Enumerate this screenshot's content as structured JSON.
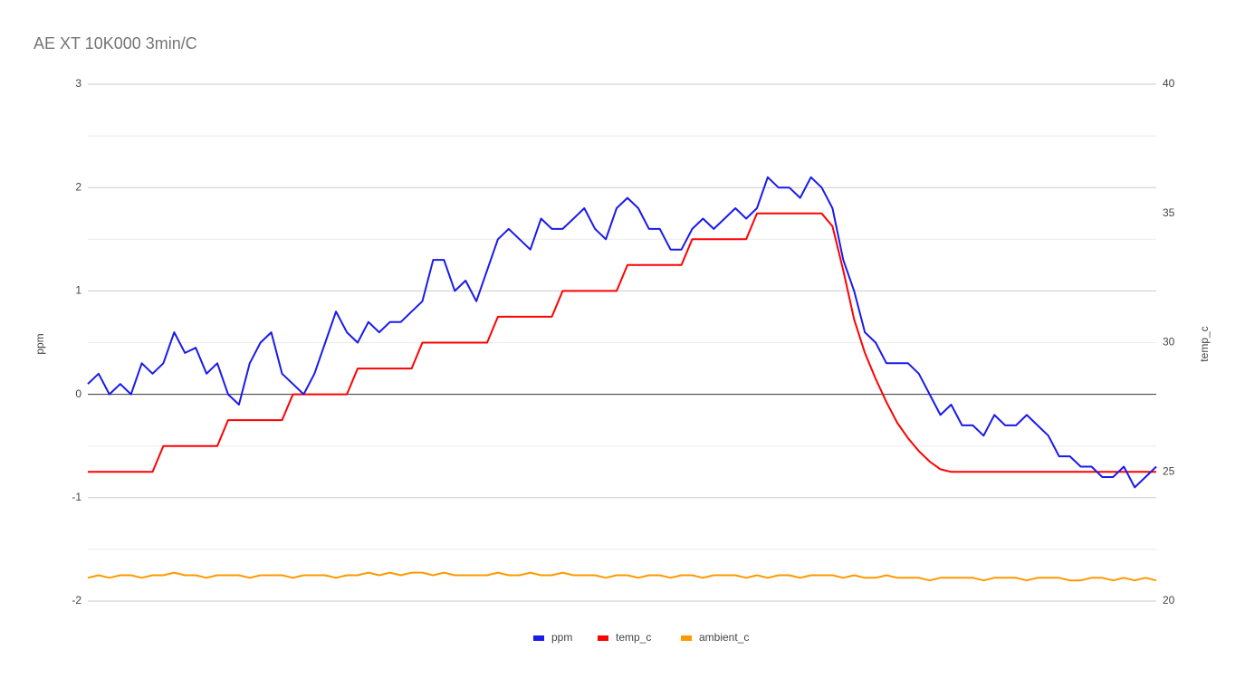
{
  "chart_data": {
    "type": "line",
    "title": "AE XT 10K000 3min/C",
    "ylabel": "ppm",
    "y2label": "temp_c",
    "categories": [
      null,
      null,
      null,
      null,
      null,
      null,
      null,
      null,
      null,
      null,
      null,
      null,
      null,
      null,
      null,
      null,
      null,
      null,
      null,
      null,
      null,
      null,
      null,
      null,
      null,
      null,
      null,
      null,
      null,
      null,
      null,
      null,
      null,
      null,
      null,
      null,
      null,
      null,
      null,
      null,
      null,
      null,
      null,
      null,
      null,
      null,
      null,
      null,
      null,
      null,
      null,
      null,
      null,
      null,
      null,
      null,
      null,
      null,
      null,
      null,
      null,
      null,
      null,
      null,
      null,
      null,
      null,
      null,
      null,
      null,
      null,
      null,
      null,
      null,
      null,
      null,
      null,
      null,
      null,
      null,
      null,
      null,
      null,
      null,
      null,
      null,
      null,
      null,
      null,
      null,
      null,
      null,
      null,
      null,
      null,
      null,
      null,
      null,
      null,
      null
    ],
    "ylim": [
      -2,
      3
    ],
    "yticks": [
      -2,
      -1,
      0,
      1,
      2,
      3
    ],
    "y2lim": [
      20,
      40
    ],
    "y2ticks": [
      20,
      25,
      30,
      35,
      40
    ],
    "grid": true,
    "legend": "bottom",
    "series": [
      {
        "name": "ppm",
        "color": "#1a1aeb",
        "values": [
          0.1,
          0.2,
          0.0,
          0.1,
          0.0,
          0.3,
          0.2,
          0.3,
          0.6,
          0.4,
          0.45,
          0.2,
          0.3,
          0.0,
          -0.1,
          0.3,
          0.5,
          0.6,
          0.2,
          0.1,
          0.0,
          0.2,
          0.5,
          0.8,
          0.6,
          0.5,
          0.7,
          0.6,
          0.7,
          0.7,
          0.8,
          0.9,
          1.3,
          1.3,
          1.0,
          1.1,
          0.9,
          1.2,
          1.5,
          1.6,
          1.5,
          1.4,
          1.7,
          1.6,
          1.6,
          1.7,
          1.8,
          1.6,
          1.5,
          1.8,
          1.9,
          1.8,
          1.6,
          1.6,
          1.4,
          1.4,
          1.6,
          1.7,
          1.6,
          1.7,
          1.8,
          1.7,
          1.8,
          2.1,
          2.0,
          2.0,
          1.9,
          2.1,
          2.0,
          1.8,
          1.3,
          1.0,
          0.6,
          0.5,
          0.3,
          0.3,
          0.3,
          0.2,
          0.0,
          -0.2,
          -0.1,
          -0.3,
          -0.3,
          -0.4,
          -0.2,
          -0.3,
          -0.3,
          -0.2,
          -0.3,
          -0.4,
          -0.6,
          -0.6,
          -0.7,
          -0.7,
          -0.8,
          -0.8,
          -0.7,
          -0.9,
          -0.8,
          -0.7
        ]
      },
      {
        "name": "temp_c",
        "color": "#ff0000",
        "axis": "y2",
        "values": [
          25,
          25,
          25,
          25,
          25,
          25,
          25,
          26,
          26,
          26,
          26,
          26,
          26,
          27,
          27,
          27,
          27,
          27,
          27,
          28,
          28,
          28,
          28,
          28,
          28,
          29,
          29,
          29,
          29,
          29,
          29,
          30,
          30,
          30,
          30,
          30,
          30,
          30,
          31,
          31,
          31,
          31,
          31,
          31,
          32,
          32,
          32,
          32,
          32,
          32,
          33,
          33,
          33,
          33,
          33,
          33,
          34,
          34,
          34,
          34,
          34,
          34,
          35,
          35,
          35,
          35,
          35,
          35,
          35,
          34.5,
          32.8,
          30.9,
          29.6,
          28.6,
          27.7,
          26.9,
          26.3,
          25.8,
          25.4,
          25.1,
          25,
          25,
          25,
          25,
          25,
          25,
          25,
          25,
          25,
          25,
          25,
          25,
          25,
          25,
          25,
          25,
          25,
          25,
          25,
          25
        ]
      },
      {
        "name": "ambient_c",
        "color": "#ff9900",
        "axis": "y2",
        "values": [
          20.9,
          21.0,
          20.9,
          21.0,
          21.0,
          20.9,
          21.0,
          21.0,
          21.1,
          21.0,
          21.0,
          20.9,
          21.0,
          21.0,
          21.0,
          20.9,
          21.0,
          21.0,
          21.0,
          20.9,
          21.0,
          21.0,
          21.0,
          20.9,
          21.0,
          21.0,
          21.1,
          21.0,
          21.1,
          21.0,
          21.1,
          21.1,
          21.0,
          21.1,
          21.0,
          21.0,
          21.0,
          21.0,
          21.1,
          21.0,
          21.0,
          21.1,
          21.0,
          21.0,
          21.1,
          21.0,
          21.0,
          21.0,
          20.9,
          21.0,
          21.0,
          20.9,
          21.0,
          21.0,
          20.9,
          21.0,
          21.0,
          20.9,
          21.0,
          21.0,
          21.0,
          20.9,
          21.0,
          20.9,
          21.0,
          21.0,
          20.9,
          21.0,
          21.0,
          21.0,
          20.9,
          21.0,
          20.9,
          20.9,
          21.0,
          20.9,
          20.9,
          20.9,
          20.8,
          20.9,
          20.9,
          20.9,
          20.9,
          20.8,
          20.9,
          20.9,
          20.9,
          20.8,
          20.9,
          20.9,
          20.9,
          20.8,
          20.8,
          20.9,
          20.9,
          20.8,
          20.9,
          20.8,
          20.9,
          20.8
        ]
      }
    ]
  }
}
